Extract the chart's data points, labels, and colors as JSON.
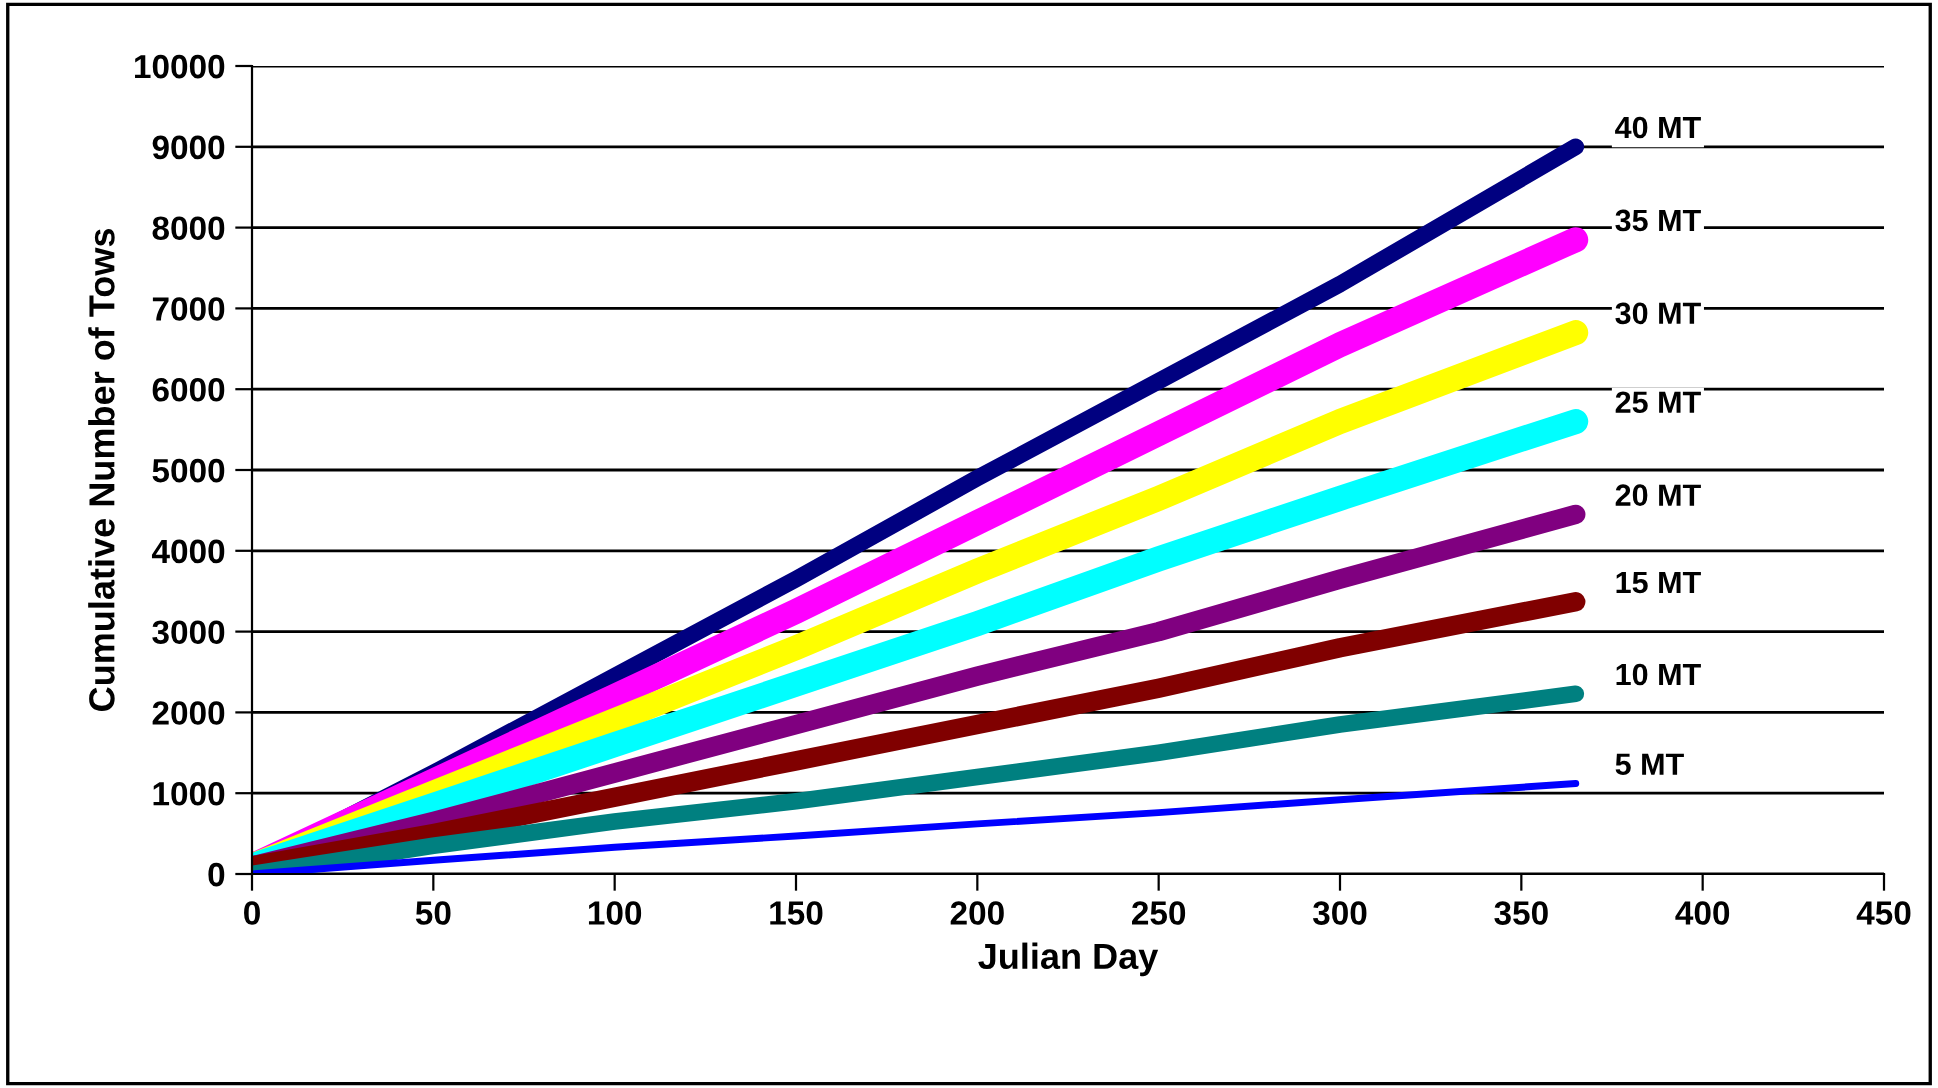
{
  "chart_data": {
    "type": "line",
    "xlabel": "Julian Day",
    "ylabel": "Cumulative Number of Tows",
    "xlim": [
      0,
      450
    ],
    "ylim": [
      0,
      10000
    ],
    "xticks": [
      0,
      50,
      100,
      150,
      200,
      250,
      300,
      350,
      400,
      450
    ],
    "yticks": [
      0,
      1000,
      2000,
      3000,
      4000,
      5000,
      6000,
      7000,
      8000,
      9000,
      10000
    ],
    "grid": "y",
    "legend": false,
    "series": [
      {
        "name": "40 MT",
        "color": "#000080",
        "x": [
          0,
          50,
          100,
          150,
          200,
          250,
          300,
          365
        ],
        "values": [
          100,
          1250,
          2450,
          3650,
          4900,
          6100,
          7300,
          9000
        ]
      },
      {
        "name": "35 MT",
        "color": "#ff00ff",
        "x": [
          0,
          50,
          100,
          150,
          200,
          250,
          300,
          365
        ],
        "values": [
          100,
          1150,
          2200,
          3250,
          4350,
          5450,
          6550,
          7850
        ]
      },
      {
        "name": "30 MT",
        "color": "#ffff00",
        "x": [
          0,
          50,
          100,
          150,
          200,
          250,
          300,
          365
        ],
        "values": [
          100,
          1000,
          1900,
          2800,
          3750,
          4650,
          5600,
          6700
        ]
      },
      {
        "name": "25 MT",
        "color": "#00ffff",
        "x": [
          0,
          50,
          100,
          150,
          200,
          250,
          300,
          365
        ],
        "values": [
          100,
          850,
          1600,
          2350,
          3100,
          3900,
          4650,
          5600
        ]
      },
      {
        "name": "20 MT",
        "color": "#800080",
        "x": [
          0,
          50,
          100,
          150,
          200,
          250,
          300,
          365
        ],
        "values": [
          100,
          650,
          1250,
          1850,
          2450,
          3000,
          3650,
          4450
        ]
      },
      {
        "name": "15 MT",
        "color": "#800000",
        "x": [
          0,
          50,
          100,
          150,
          200,
          250,
          300,
          365
        ],
        "values": [
          100,
          500,
          950,
          1400,
          1850,
          2300,
          2800,
          3370
        ]
      },
      {
        "name": "10 MT",
        "color": "#008080",
        "x": [
          0,
          50,
          100,
          150,
          200,
          250,
          300,
          365
        ],
        "values": [
          0,
          350,
          650,
          900,
          1200,
          1500,
          1850,
          2230
        ]
      },
      {
        "name": "5 MT",
        "color": "#0000ff",
        "x": [
          0,
          50,
          100,
          150,
          200,
          250,
          300,
          365
        ],
        "values": [
          0,
          170,
          330,
          470,
          620,
          760,
          920,
          1120
        ]
      }
    ]
  }
}
